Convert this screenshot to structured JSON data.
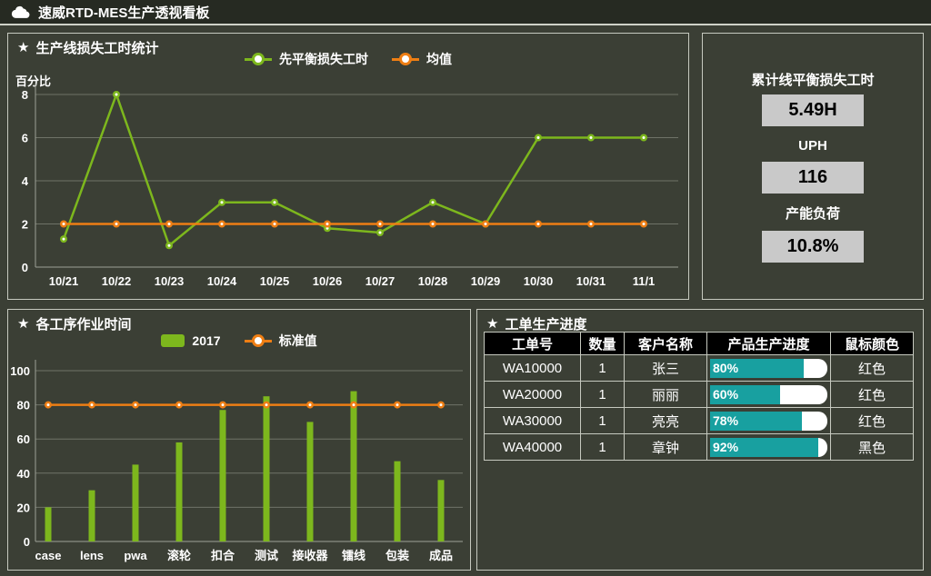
{
  "header": {
    "title": "速威RTD-MES生产透视看板"
  },
  "icons": {
    "star": "★"
  },
  "chart_data": [
    {
      "id": "loss-line",
      "type": "line",
      "title": "生产线损失工时统计",
      "ylabel": "百分比",
      "categories": [
        "10/21",
        "10/22",
        "10/23",
        "10/24",
        "10/25",
        "10/26",
        "10/27",
        "10/28",
        "10/29",
        "10/30",
        "10/31",
        "11/1"
      ],
      "series": [
        {
          "name": "先平衡损失工时",
          "type": "line",
          "color": "#7db71d",
          "values": [
            1.3,
            8,
            1,
            3,
            3,
            1.8,
            1.6,
            3,
            2,
            6,
            6,
            6
          ]
        },
        {
          "name": "均值",
          "type": "line",
          "color": "#ee7e14",
          "values": [
            2,
            2,
            2,
            2,
            2,
            2,
            2,
            2,
            2,
            2,
            2,
            2
          ]
        }
      ],
      "ylim": [
        0,
        8
      ],
      "yticks": [
        0,
        2,
        4,
        6,
        8
      ],
      "legend_position": "top",
      "grid": true
    },
    {
      "id": "process-bar",
      "type": "bar",
      "title": "各工序作业时间",
      "categories": [
        "case",
        "lens",
        "pwa",
        "滚轮",
        "扣合",
        "测试",
        "接收器",
        "镭线",
        "包装",
        "成品"
      ],
      "series": [
        {
          "name": "2017",
          "type": "bar",
          "color": "#7db71d",
          "values": [
            20,
            30,
            45,
            58,
            77,
            85,
            70,
            88,
            47,
            36
          ]
        },
        {
          "name": "标准值",
          "type": "line",
          "color": "#ee7e14",
          "values": [
            80,
            80,
            80,
            80,
            80,
            80,
            80,
            80,
            80,
            80
          ]
        }
      ],
      "ylim": [
        0,
        100
      ],
      "yticks": [
        0,
        20,
        40,
        60,
        80,
        100
      ],
      "legend_position": "top",
      "grid": true
    }
  ],
  "kpi": {
    "items": [
      {
        "label": "累计线平衡损失工时",
        "value": "5.49H"
      },
      {
        "label": "UPH",
        "value": "116"
      },
      {
        "label": "产能负荷",
        "value": "10.8%"
      }
    ]
  },
  "table": {
    "title": "工单生产进度",
    "headers": [
      "工单号",
      "数量",
      "客户名称",
      "产品生产进度",
      "鼠标颜色"
    ],
    "rows": [
      {
        "order_no": "WA10000",
        "qty": "1",
        "customer": "张三",
        "progress_pct": 80,
        "progress_label": "80%",
        "cursor_color": "红色"
      },
      {
        "order_no": "WA20000",
        "qty": "1",
        "customer": "丽丽",
        "progress_pct": 60,
        "progress_label": "60%",
        "cursor_color": "红色"
      },
      {
        "order_no": "WA30000",
        "qty": "1",
        "customer": "亮亮",
        "progress_pct": 78,
        "progress_label": "78%",
        "cursor_color": "红色"
      },
      {
        "order_no": "WA40000",
        "qty": "1",
        "customer": "章钟",
        "progress_pct": 92,
        "progress_label": "92%",
        "cursor_color": "黑色"
      }
    ]
  },
  "colors": {
    "background": "#3b3f35",
    "header_background": "#262a22",
    "panel_border": "#c6c9bf",
    "grid_line": "#6f7368",
    "axis_line": "#9da196",
    "series_green": "#7db71d",
    "series_orange": "#ee7e14",
    "progress_teal": "#18a0a0",
    "kpi_box_background": "#c9c9c9",
    "table_header_background": "#000000"
  }
}
